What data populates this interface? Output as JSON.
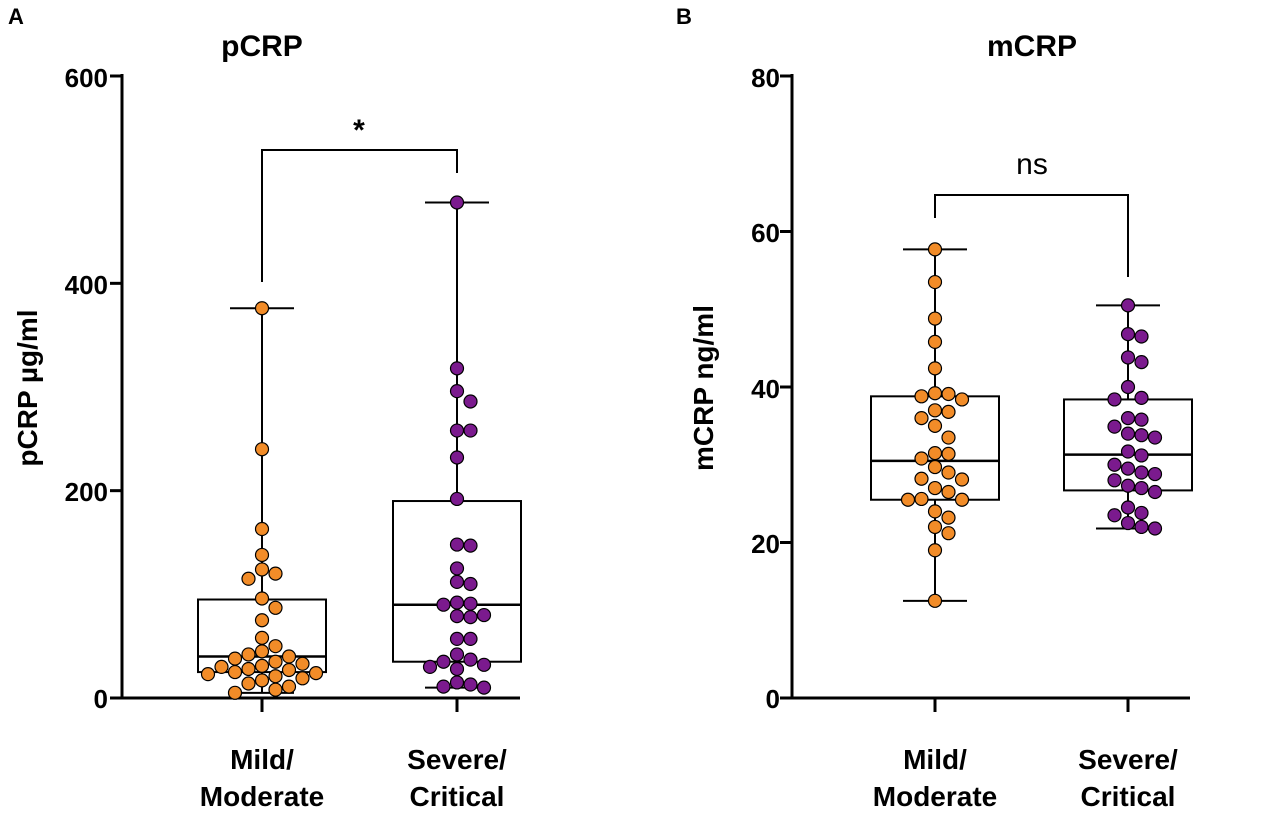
{
  "panels": [
    {
      "letter": "A",
      "title": "pCRP",
      "ylabel": "pCRP µg/ml",
      "ylim": [
        0,
        600
      ],
      "yticks": [
        "0",
        "200",
        "400",
        "600"
      ],
      "categories": [
        "Mild/\nModerate",
        "Severe/\nCritical"
      ],
      "significance": "*"
    },
    {
      "letter": "B",
      "title": "mCRP",
      "ylabel": "mCRP ng/ml",
      "ylim": [
        0,
        80
      ],
      "yticks": [
        "0",
        "20",
        "40",
        "60",
        "80"
      ],
      "categories": [
        "Mild/\nModerate",
        "Severe/\nCritical"
      ],
      "significance": "ns"
    }
  ],
  "colors": {
    "mild": "#F28C28",
    "severe": "#7B1A8E",
    "stroke": "#000000"
  },
  "chart_data": [
    {
      "type": "box",
      "title": "pCRP",
      "ylabel": "pCRP µg/ml",
      "ylim": [
        0,
        600
      ],
      "categories": [
        "Mild/Moderate",
        "Severe/Critical"
      ],
      "series": [
        {
          "name": "Mild/Moderate",
          "color": "#F28C28",
          "box": {
            "min": 5,
            "q1": 25,
            "median": 40,
            "q3": 95,
            "max": 376
          },
          "points": [
            376,
            240,
            163,
            138,
            124,
            120,
            115,
            96,
            87,
            75,
            58,
            50,
            45,
            42,
            40,
            38,
            35,
            33,
            31,
            30,
            28,
            27,
            25,
            24,
            23,
            21,
            19,
            17,
            14,
            11,
            8,
            5
          ]
        },
        {
          "name": "Severe/Critical",
          "color": "#7B1A8E",
          "box": {
            "min": 10,
            "q1": 35,
            "median": 90,
            "q3": 190,
            "max": 478
          },
          "points": [
            478,
            318,
            296,
            286,
            258,
            258,
            232,
            192,
            148,
            147,
            125,
            112,
            110,
            92,
            91,
            90,
            80,
            79,
            78,
            57,
            57,
            42,
            37,
            35,
            32,
            30,
            28,
            15,
            13,
            11,
            10
          ]
        }
      ],
      "significance": "*"
    },
    {
      "type": "box",
      "title": "mCRP",
      "ylabel": "mCRP ng/ml",
      "ylim": [
        0,
        80
      ],
      "categories": [
        "Mild/Moderate",
        "Severe/Critical"
      ],
      "series": [
        {
          "name": "Mild/Moderate",
          "color": "#F28C28",
          "box": {
            "min": 12.5,
            "q1": 25.5,
            "median": 30.5,
            "q3": 38.8,
            "max": 57.7
          },
          "points": [
            57.7,
            53.5,
            48.8,
            45.8,
            42.4,
            39.2,
            39.1,
            38.8,
            38.4,
            37.0,
            36.8,
            36.0,
            35.0,
            33.5,
            31.5,
            31.4,
            30.8,
            29.7,
            29.0,
            28.2,
            28.1,
            27.0,
            26.5,
            25.6,
            25.5,
            25.5,
            24.0,
            23.2,
            22.0,
            21.2,
            19.0,
            12.5
          ]
        },
        {
          "name": "Severe/Critical",
          "color": "#7B1A8E",
          "box": {
            "min": 21.8,
            "q1": 26.7,
            "median": 31.3,
            "q3": 38.4,
            "max": 50.5
          },
          "points": [
            50.5,
            46.8,
            46.5,
            43.8,
            43.2,
            40.0,
            38.6,
            38.4,
            36.0,
            35.8,
            34.9,
            34.0,
            33.8,
            33.5,
            31.7,
            31.2,
            30.0,
            29.5,
            29.0,
            28.8,
            28.0,
            27.3,
            27.0,
            26.5,
            24.5,
            23.8,
            23.5,
            22.5,
            22.0,
            21.8
          ]
        }
      ],
      "significance": "ns"
    }
  ]
}
